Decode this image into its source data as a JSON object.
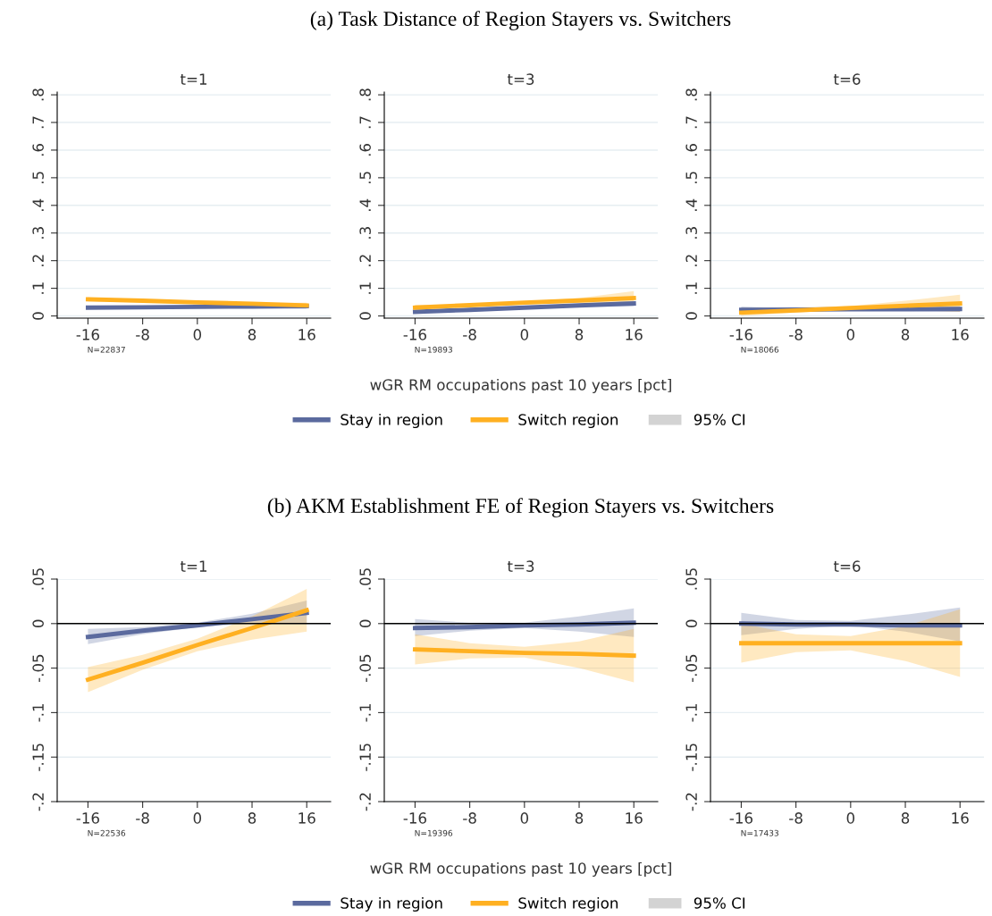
{
  "chart_data": [
    {
      "type": "line",
      "title": "t=1",
      "x": [
        -16,
        -8,
        0,
        8,
        16
      ],
      "xlim": [
        -20.5,
        19.5
      ],
      "xticks": [
        -16,
        -8,
        0,
        8,
        16
      ],
      "ylim": [
        -0.008,
        0.81
      ],
      "yticks": [
        {
          "value": 0,
          "label": "0"
        },
        {
          "value": 0.1,
          "label": ".1"
        },
        {
          "value": 0.2,
          "label": ".2"
        },
        {
          "value": 0.3,
          "label": ".3"
        },
        {
          "value": 0.4,
          "label": ".4"
        },
        {
          "value": 0.5,
          "label": ".5"
        },
        {
          "value": 0.6,
          "label": ".6"
        },
        {
          "value": 0.7,
          "label": ".7"
        },
        {
          "value": 0.8,
          "label": ".8"
        }
      ],
      "grid": "y",
      "legend": "bottom",
      "annotations": [
        "N=22837"
      ],
      "series": [
        {
          "name": "Stay in region",
          "color": "#5b6a9e",
          "values": [
            0.03,
            0.031,
            0.033,
            0.034,
            0.035
          ],
          "lower": [
            0.024,
            0.027,
            0.03,
            0.03,
            0.026
          ],
          "upper": [
            0.036,
            0.035,
            0.036,
            0.038,
            0.044
          ]
        },
        {
          "name": "Switch region",
          "color": "#ffb021",
          "values": [
            0.06,
            0.055,
            0.049,
            0.044,
            0.038
          ],
          "lower": [
            0.053,
            0.05,
            0.046,
            0.039,
            0.029
          ],
          "upper": [
            0.067,
            0.059,
            0.052,
            0.048,
            0.048
          ]
        },
        {
          "name": "95% CI",
          "type": "area",
          "color": "#d3d3d3",
          "values": [
            null,
            null,
            null,
            null,
            null
          ]
        }
      ]
    },
    {
      "type": "line",
      "subtitle": "(a) Task Distance of Region Stayers vs. Switchers",
      "title": "t=3",
      "x": [
        -16,
        -8,
        0,
        8,
        16
      ],
      "xlim": [
        -20.5,
        19.5
      ],
      "xticks": [
        -16,
        -8,
        0,
        8,
        16
      ],
      "ylim": [
        -0.008,
        0.81
      ],
      "yticks": [
        {
          "value": 0,
          "label": "0"
        },
        {
          "value": 0.1,
          "label": ".1"
        },
        {
          "value": 0.2,
          "label": ".2"
        },
        {
          "value": 0.3,
          "label": ".3"
        },
        {
          "value": 0.4,
          "label": ".4"
        },
        {
          "value": 0.5,
          "label": ".5"
        },
        {
          "value": 0.6,
          "label": ".6"
        },
        {
          "value": 0.7,
          "label": ".7"
        },
        {
          "value": 0.8,
          "label": ".8"
        }
      ],
      "grid": "y",
      "xlabel": "wGR RM occupations past 10 years [pct]",
      "annotations": [
        "N=19893"
      ],
      "series": [
        {
          "color": "#5b6a9e",
          "values": [
            0.015,
            0.022,
            0.03,
            0.038,
            0.045
          ],
          "lower": [
            0.008,
            0.018,
            0.027,
            0.033,
            0.036
          ],
          "upper": [
            0.022,
            0.027,
            0.033,
            0.042,
            0.054
          ]
        },
        {
          "color": "#ffb021",
          "values": [
            0.03,
            0.039,
            0.048,
            0.056,
            0.065
          ],
          "lower": [
            0.02,
            0.035,
            0.043,
            0.048,
            0.045
          ],
          "upper": [
            0.04,
            0.043,
            0.052,
            0.065,
            0.09
          ]
        }
      ]
    },
    {
      "type": "line",
      "title": "t=6",
      "x": [
        -16,
        -8,
        0,
        8,
        16
      ],
      "xlim": [
        -20.5,
        19.5
      ],
      "xticks": [
        -16,
        -8,
        0,
        8,
        16
      ],
      "ylim": [
        -0.008,
        0.81
      ],
      "yticks": [
        {
          "value": 0,
          "label": "0"
        },
        {
          "value": 0.1,
          "label": ".1"
        },
        {
          "value": 0.2,
          "label": ".2"
        },
        {
          "value": 0.3,
          "label": ".3"
        },
        {
          "value": 0.4,
          "label": ".4"
        },
        {
          "value": 0.5,
          "label": ".5"
        },
        {
          "value": 0.6,
          "label": ".6"
        },
        {
          "value": 0.7,
          "label": ".7"
        },
        {
          "value": 0.8,
          "label": ".8"
        }
      ],
      "grid": "y",
      "annotations": [
        "N=18066"
      ],
      "series": [
        {
          "color": "#5b6a9e",
          "values": [
            0.022,
            0.023,
            0.024,
            0.024,
            0.025
          ],
          "lower": [
            0.01,
            0.019,
            0.021,
            0.018,
            0.015
          ],
          "upper": [
            0.034,
            0.027,
            0.027,
            0.03,
            0.035
          ]
        },
        {
          "color": "#ffb021",
          "values": [
            0.012,
            0.02,
            0.029,
            0.037,
            0.045
          ],
          "lower": [
            0.0,
            0.012,
            0.022,
            0.022,
            0.015
          ],
          "upper": [
            0.028,
            0.03,
            0.036,
            0.055,
            0.077
          ]
        }
      ]
    },
    {
      "type": "line",
      "title": "t=1",
      "x": [
        -16,
        -8,
        0,
        8,
        16
      ],
      "xlim": [
        -20.5,
        19.5
      ],
      "xticks": [
        -16,
        -8,
        0,
        8,
        16
      ],
      "ylim": [
        -0.2,
        0.05
      ],
      "yticks": [
        {
          "value": -0.2,
          "label": "-.2"
        },
        {
          "value": -0.15,
          "label": "-.15"
        },
        {
          "value": -0.1,
          "label": "-.1"
        },
        {
          "value": -0.05,
          "label": "-.05"
        },
        {
          "value": 0,
          "label": "0"
        },
        {
          "value": 0.05,
          "label": ".05"
        }
      ],
      "grid": "y",
      "ref_lines": [
        {
          "axis": "y",
          "value": 0,
          "color": "#000000"
        }
      ],
      "legend": "bottom",
      "annotations": [
        "N=22536"
      ],
      "series": [
        {
          "name": "Stay in region",
          "color": "#5b6a9e",
          "values": [
            -0.015,
            -0.008,
            -0.002,
            0.005,
            0.012
          ],
          "lower": [
            -0.023,
            -0.012,
            -0.004,
            0.0,
            0.0
          ],
          "upper": [
            -0.006,
            -0.004,
            0.001,
            0.011,
            0.026
          ]
        },
        {
          "name": "Switch region",
          "color": "#ffb021",
          "values": [
            -0.063,
            -0.044,
            -0.024,
            -0.005,
            0.015
          ],
          "lower": [
            -0.077,
            -0.052,
            -0.031,
            -0.018,
            -0.009
          ],
          "upper": [
            -0.049,
            -0.035,
            -0.017,
            0.008,
            0.039
          ]
        },
        {
          "name": "95% CI",
          "type": "area",
          "color": "#d3d3d3",
          "values": [
            null,
            null,
            null,
            null,
            null
          ]
        }
      ]
    },
    {
      "type": "line",
      "subtitle": "(b) AKM Establishment FE of Region Stayers vs. Switchers",
      "title": "t=3",
      "x": [
        -16,
        -8,
        0,
        8,
        16
      ],
      "xlim": [
        -20.5,
        19.5
      ],
      "xticks": [
        -16,
        -8,
        0,
        8,
        16
      ],
      "ylim": [
        -0.2,
        0.05
      ],
      "yticks": [
        {
          "value": -0.2,
          "label": "-.2"
        },
        {
          "value": -0.15,
          "label": "-.15"
        },
        {
          "value": -0.1,
          "label": "-.1"
        },
        {
          "value": -0.05,
          "label": "-.05"
        },
        {
          "value": 0,
          "label": "0"
        },
        {
          "value": 0.05,
          "label": ".05"
        }
      ],
      "grid": "y",
      "ref_lines": [
        {
          "axis": "y",
          "value": 0,
          "color": "#000000"
        }
      ],
      "xlabel": "wGR RM occupations past 10 years [pct]",
      "annotations": [
        "N=19396"
      ],
      "series": [
        {
          "color": "#5b6a9e",
          "values": [
            -0.005,
            -0.004,
            -0.002,
            -0.001,
            0.001
          ],
          "lower": [
            -0.014,
            -0.008,
            -0.005,
            -0.009,
            -0.015
          ],
          "upper": [
            0.005,
            0.001,
            0.001,
            0.008,
            0.017
          ]
        },
        {
          "color": "#ffb021",
          "values": [
            -0.029,
            -0.031,
            -0.033,
            -0.034,
            -0.036
          ],
          "lower": [
            -0.046,
            -0.039,
            -0.038,
            -0.05,
            -0.066
          ],
          "upper": [
            -0.012,
            -0.022,
            -0.026,
            -0.02,
            -0.006
          ]
        }
      ]
    },
    {
      "type": "line",
      "title": "t=6",
      "x": [
        -16,
        -8,
        0,
        8,
        16
      ],
      "xlim": [
        -20.5,
        19.5
      ],
      "xticks": [
        -16,
        -8,
        0,
        8,
        16
      ],
      "ylim": [
        -0.2,
        0.05
      ],
      "yticks": [
        {
          "value": -0.2,
          "label": "-.2"
        },
        {
          "value": -0.15,
          "label": "-.15"
        },
        {
          "value": -0.1,
          "label": "-.1"
        },
        {
          "value": -0.05,
          "label": "-.05"
        },
        {
          "value": 0,
          "label": "0"
        },
        {
          "value": 0.05,
          "label": ".05"
        }
      ],
      "grid": "y",
      "ref_lines": [
        {
          "axis": "y",
          "value": 0,
          "color": "#000000"
        }
      ],
      "annotations": [
        "N=17433"
      ],
      "series": [
        {
          "color": "#5b6a9e",
          "values": [
            0.0,
            -0.001,
            -0.001,
            -0.002,
            -0.002
          ],
          "lower": [
            -0.013,
            -0.006,
            -0.002,
            -0.009,
            -0.02
          ],
          "upper": [
            0.012,
            0.004,
            0.003,
            0.01,
            0.018
          ]
        },
        {
          "color": "#ffb021",
          "values": [
            -0.022,
            -0.022,
            -0.022,
            -0.022,
            -0.022
          ],
          "lower": [
            -0.044,
            -0.032,
            -0.03,
            -0.042,
            -0.06
          ],
          "upper": [
            0.0,
            -0.012,
            -0.014,
            -0.003,
            0.016
          ]
        }
      ]
    }
  ]
}
